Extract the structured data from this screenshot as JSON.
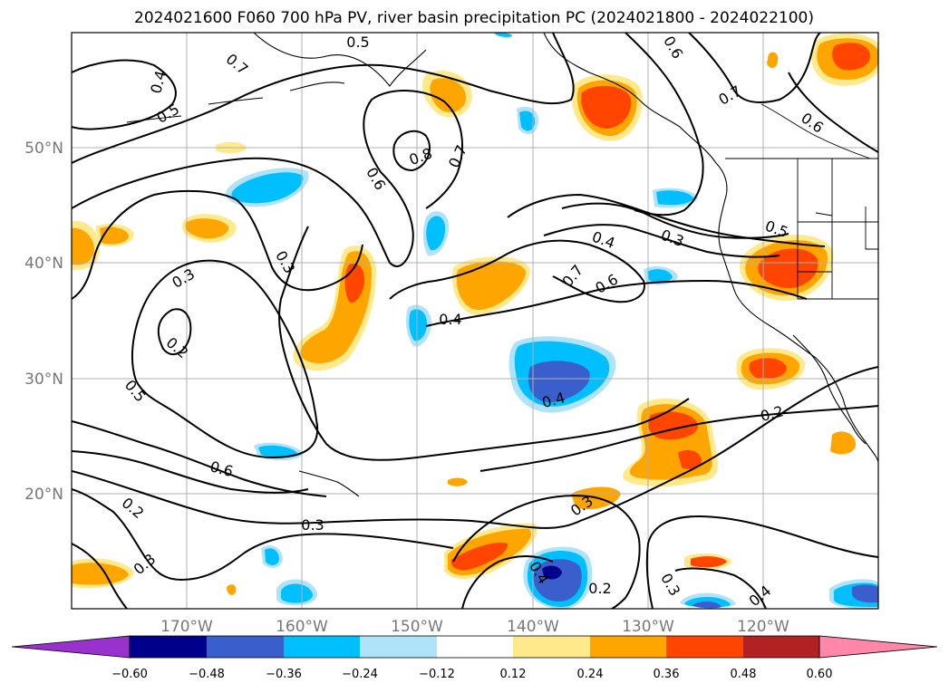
{
  "title": "2024021600 F060 700 hPa PV, river basin precipitation PC (2024021800 - 2024022100)",
  "map": {
    "lon_range": [
      -180,
      -110
    ],
    "lat_range": [
      10,
      60
    ],
    "lat_labels": [
      "50°N",
      "40°N",
      "30°N",
      "20°N"
    ],
    "lon_labels": [
      "170°W",
      "160°W",
      "150°W",
      "140°W",
      "130°W",
      "120°W"
    ],
    "contour_labels": [
      "0.5",
      "0.6",
      "0.4",
      "0.7",
      "0.5",
      "0.8",
      "0.7",
      "0.6",
      "0.7",
      "0.6",
      "0.3",
      "0.3",
      "0.2",
      "0.5",
      "0.4",
      "0.3",
      "0.5",
      "0.7",
      "0.6",
      "0.4",
      "0.4",
      "0.6",
      "0.2",
      "0.2",
      "0.3",
      "0.3",
      "0.3",
      "0.4",
      "0.2",
      "0.3",
      "0.4"
    ]
  },
  "colorbar": {
    "ticks": [
      "−0.60",
      "−0.48",
      "−0.36",
      "−0.24",
      "−0.12",
      "0.12",
      "0.24",
      "0.36",
      "0.48",
      "0.60"
    ],
    "colors": [
      "#9932cc",
      "#00008b",
      "#3a5fcd",
      "#00bfff",
      "#aee3fa",
      "#ffffff",
      "#ffe98a",
      "#ffa500",
      "#ff4500",
      "#b22222",
      "#ff88aa"
    ]
  }
}
